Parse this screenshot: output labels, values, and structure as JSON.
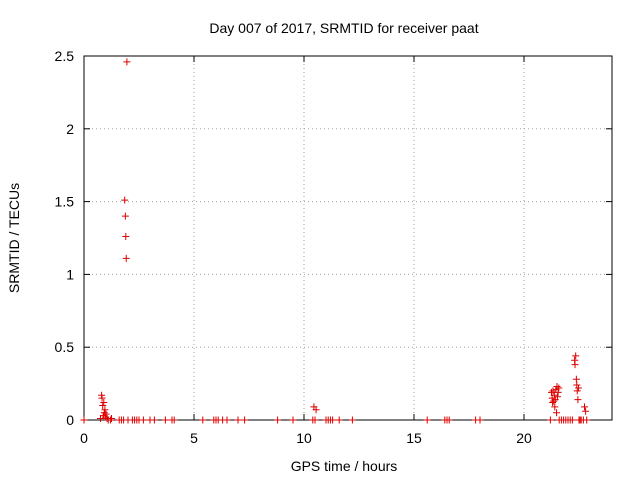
{
  "chart_data": {
    "type": "scatter",
    "title": "Day 007 of 2017, SRMTID for receiver paat",
    "xlabel": "GPS time / hours",
    "ylabel": "SRMTID / TECUs",
    "xlim": [
      0,
      24
    ],
    "ylim": [
      0,
      2.5
    ],
    "grid": true,
    "marker": "+",
    "colors": {
      "marker": "#dd0000",
      "grid": "#a0a0a0",
      "axis": "#000000"
    },
    "xticks": [
      0,
      5,
      10,
      15,
      20
    ],
    "xtick_labels": [
      "0",
      "5",
      "10",
      "15",
      "20"
    ],
    "yticks": [
      0,
      0.5,
      1,
      1.5,
      2,
      2.5
    ],
    "ytick_labels": [
      "0",
      "0.5",
      "1",
      "1.5",
      "2",
      "2.5"
    ],
    "series": [
      {
        "name": "SRMTID",
        "points": [
          [
            0.0,
            0.0
          ],
          [
            0.75,
            0.01
          ],
          [
            0.8,
            0.17
          ],
          [
            0.82,
            0.15
          ],
          [
            0.85,
            0.1
          ],
          [
            0.88,
            0.03
          ],
          [
            0.9,
            0.12
          ],
          [
            0.92,
            0.05
          ],
          [
            0.95,
            0.07
          ],
          [
            0.98,
            0.02
          ],
          [
            1.0,
            0.04
          ],
          [
            1.05,
            0.01
          ],
          [
            1.1,
            0.0
          ],
          [
            1.2,
            0.0
          ],
          [
            1.25,
            0.01
          ],
          [
            1.6,
            0.0
          ],
          [
            1.7,
            0.0
          ],
          [
            1.8,
            0.0
          ],
          [
            1.85,
            1.51
          ],
          [
            1.88,
            1.4
          ],
          [
            1.9,
            1.26
          ],
          [
            1.92,
            1.11
          ],
          [
            1.95,
            2.46
          ],
          [
            2.0,
            0.0
          ],
          [
            2.2,
            0.0
          ],
          [
            2.3,
            0.0
          ],
          [
            2.4,
            0.0
          ],
          [
            2.5,
            0.0
          ],
          [
            2.7,
            0.0
          ],
          [
            3.0,
            0.0
          ],
          [
            3.2,
            0.0
          ],
          [
            3.7,
            0.0
          ],
          [
            4.0,
            0.0
          ],
          [
            4.1,
            0.0
          ],
          [
            5.4,
            0.0
          ],
          [
            5.9,
            0.0
          ],
          [
            6.0,
            0.0
          ],
          [
            6.1,
            0.0
          ],
          [
            6.3,
            0.0
          ],
          [
            6.5,
            0.0
          ],
          [
            7.0,
            0.0
          ],
          [
            7.3,
            0.0
          ],
          [
            8.8,
            0.0
          ],
          [
            9.5,
            0.0
          ],
          [
            10.4,
            0.0
          ],
          [
            10.45,
            0.09
          ],
          [
            10.5,
            0.0
          ],
          [
            10.55,
            0.07
          ],
          [
            11.0,
            0.0
          ],
          [
            11.1,
            0.0
          ],
          [
            11.2,
            0.0
          ],
          [
            11.3,
            0.0
          ],
          [
            11.6,
            0.0
          ],
          [
            12.2,
            0.0
          ],
          [
            15.6,
            0.0
          ],
          [
            16.4,
            0.0
          ],
          [
            16.5,
            0.0
          ],
          [
            16.6,
            0.0
          ],
          [
            17.8,
            0.0
          ],
          [
            18.0,
            0.0
          ],
          [
            21.2,
            0.0
          ],
          [
            21.25,
            0.19
          ],
          [
            21.28,
            0.15
          ],
          [
            21.3,
            0.12
          ],
          [
            21.32,
            0.2
          ],
          [
            21.35,
            0.13
          ],
          [
            21.38,
            0.17
          ],
          [
            21.4,
            0.09
          ],
          [
            21.42,
            0.14
          ],
          [
            21.45,
            0.21
          ],
          [
            21.48,
            0.05
          ],
          [
            21.5,
            0.23
          ],
          [
            21.52,
            0.16
          ],
          [
            21.55,
            0.19
          ],
          [
            21.58,
            0.22
          ],
          [
            21.6,
            0.0
          ],
          [
            21.7,
            0.0
          ],
          [
            21.8,
            0.0
          ],
          [
            21.9,
            0.0
          ],
          [
            22.0,
            0.0
          ],
          [
            22.1,
            0.0
          ],
          [
            22.2,
            0.0
          ],
          [
            22.3,
            0.41
          ],
          [
            22.32,
            0.38
          ],
          [
            22.35,
            0.44
          ],
          [
            22.38,
            0.28
          ],
          [
            22.4,
            0.24
          ],
          [
            22.42,
            0.2
          ],
          [
            22.45,
            0.14
          ],
          [
            22.48,
            0.22
          ],
          [
            22.5,
            0.0
          ],
          [
            22.55,
            0.0
          ],
          [
            22.6,
            0.0
          ],
          [
            22.7,
            0.0
          ],
          [
            22.75,
            0.09
          ],
          [
            22.8,
            0.06
          ],
          [
            22.85,
            0.0
          ]
        ]
      }
    ]
  }
}
